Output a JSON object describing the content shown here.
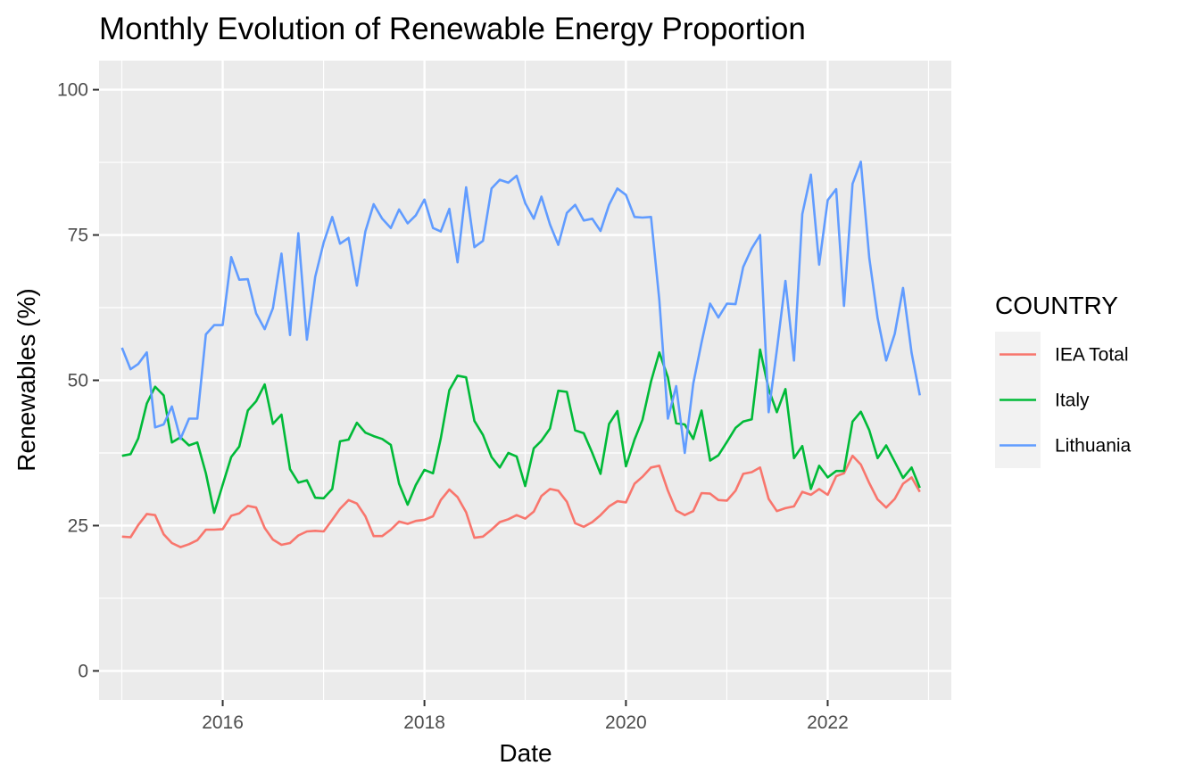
{
  "chart_data": {
    "type": "line",
    "title": "Monthly Evolution of Renewable Energy Proportion",
    "xlabel": "Date",
    "ylabel": "Renewables (%)",
    "xlim": [
      "2014-10-10",
      "2023-03-25"
    ],
    "ylim": [
      -5,
      105
    ],
    "x_ticks": [
      "2016",
      "2018",
      "2020",
      "2022"
    ],
    "x_tick_dates": [
      "2016-01-01",
      "2018-01-01",
      "2020-01-01",
      "2022-01-01"
    ],
    "y_ticks": [
      0,
      25,
      50,
      75,
      100
    ],
    "grid": true,
    "legend": {
      "title": "COUNTRY",
      "position": "right"
    },
    "x_start": "2015-01",
    "x_end": "2022-12",
    "frequency": "monthly",
    "series": [
      {
        "name": "IEA Total",
        "color": "#F8766D",
        "values": [
          23.1,
          23.0,
          25.1,
          27.0,
          26.8,
          23.5,
          22.0,
          21.3,
          21.8,
          22.5,
          24.3,
          24.3,
          24.4,
          26.7,
          27.1,
          28.4,
          28.1,
          24.6,
          22.6,
          21.7,
          22.0,
          23.3,
          24.0,
          24.1,
          24.0,
          26.0,
          27.9,
          29.4,
          28.8,
          26.6,
          23.2,
          23.2,
          24.3,
          25.7,
          25.3,
          25.8,
          26.0,
          26.6,
          29.4,
          31.2,
          29.9,
          27.3,
          22.9,
          23.1,
          24.3,
          25.6,
          26.1,
          26.8,
          26.2,
          27.4,
          30.1,
          31.3,
          31.0,
          29.1,
          25.4,
          24.8,
          25.6,
          26.8,
          28.3,
          29.2,
          29.0,
          32.2,
          33.4,
          35.0,
          35.3,
          31.0,
          27.6,
          26.8,
          27.5,
          30.6,
          30.5,
          29.4,
          29.3,
          31.0,
          33.9,
          34.2,
          35.0,
          29.6,
          27.5,
          28.0,
          28.3,
          30.8,
          30.3,
          31.3,
          30.3,
          33.5,
          34.0,
          37.0,
          35.5,
          32.3,
          29.5,
          28.1,
          29.6,
          32.2,
          33.3,
          30.8
        ]
      },
      {
        "name": "Italy",
        "color": "#00BA38",
        "values": [
          37.0,
          37.3,
          40.0,
          46.0,
          48.9,
          47.4,
          39.3,
          40.2,
          38.8,
          39.3,
          34.0,
          27.2,
          32.0,
          36.8,
          38.6,
          44.8,
          46.4,
          49.3,
          42.5,
          44.1,
          34.7,
          32.4,
          32.8,
          29.8,
          29.7,
          31.3,
          39.5,
          39.8,
          42.7,
          41.0,
          40.4,
          39.9,
          38.9,
          32.2,
          28.6,
          32.0,
          34.6,
          34.0,
          40.0,
          48.3,
          50.8,
          50.5,
          43.0,
          40.6,
          36.8,
          35.0,
          37.5,
          36.9,
          31.8,
          38.3,
          39.6,
          41.7,
          48.2,
          48.0,
          41.4,
          40.9,
          37.5,
          33.9,
          42.5,
          44.7,
          35.2,
          39.8,
          43.2,
          49.8,
          54.8,
          50.5,
          42.6,
          42.4,
          39.9,
          44.8,
          36.2,
          37.1,
          39.4,
          41.8,
          42.9,
          43.3,
          55.3,
          48.5,
          44.5,
          48.5,
          36.6,
          38.7,
          31.3,
          35.3,
          33.3,
          34.4,
          34.4,
          42.9,
          44.6,
          41.4,
          36.6,
          38.8,
          36.0,
          33.2,
          35.0,
          31.5
        ]
      },
      {
        "name": "Lithuania",
        "color": "#619CFF",
        "values": [
          55.6,
          51.9,
          52.8,
          54.8,
          41.9,
          42.4,
          45.5,
          39.9,
          43.4,
          43.4,
          57.9,
          59.5,
          59.5,
          71.2,
          67.3,
          67.4,
          61.5,
          58.8,
          62.4,
          71.8,
          57.8,
          75.3,
          57.0,
          67.8,
          73.7,
          78.1,
          73.5,
          74.5,
          66.3,
          75.6,
          80.3,
          77.8,
          76.2,
          79.4,
          77.0,
          78.4,
          81.1,
          76.2,
          75.6,
          79.5,
          70.3,
          83.2,
          72.9,
          74.0,
          83.0,
          84.5,
          84.0,
          85.2,
          80.5,
          77.8,
          81.6,
          76.8,
          73.3,
          78.8,
          80.2,
          77.5,
          77.8,
          75.7,
          80.2,
          83.0,
          81.9,
          78.1,
          78.0,
          78.1,
          63.8,
          43.4,
          49.0,
          37.5,
          49.4,
          56.5,
          63.2,
          60.8,
          63.2,
          63.1,
          69.5,
          72.7,
          75.0,
          44.5,
          55.2,
          67.1,
          53.4,
          78.6,
          85.4,
          69.9,
          81.0,
          82.9,
          62.8,
          83.8,
          87.6,
          71.0,
          60.7,
          53.4,
          58.0,
          65.9,
          54.7,
          47.4
        ]
      }
    ]
  }
}
